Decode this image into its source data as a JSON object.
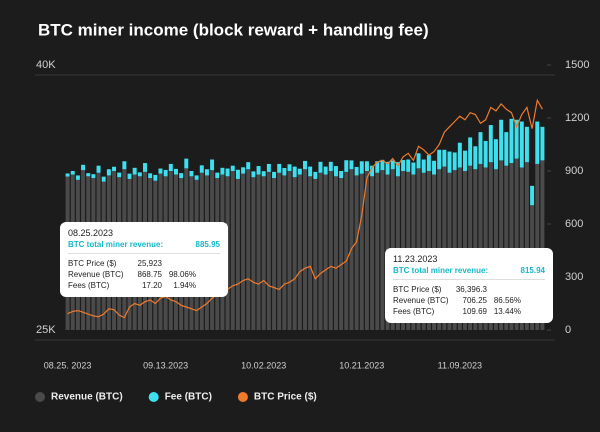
{
  "chart_data": {
    "type": "bar",
    "title": "BTC miner income (block reward + handling fee)",
    "categories": [
      "08.25. 2023",
      null,
      null,
      null,
      null,
      null,
      null,
      null,
      null,
      null,
      null,
      null,
      null,
      null,
      null,
      null,
      null,
      null,
      null,
      "09.13.2023",
      null,
      null,
      null,
      null,
      null,
      null,
      null,
      null,
      null,
      null,
      null,
      null,
      null,
      null,
      null,
      null,
      null,
      null,
      "10.02.2023",
      null,
      null,
      null,
      null,
      null,
      null,
      null,
      null,
      null,
      null,
      null,
      null,
      null,
      null,
      null,
      null,
      null,
      null,
      "10.21.2023",
      null,
      null,
      null,
      null,
      null,
      null,
      null,
      null,
      null,
      null,
      null,
      null,
      null,
      null,
      null,
      null,
      null,
      null,
      "11.09.2023",
      null,
      null,
      null,
      null,
      null,
      null,
      null,
      null,
      null,
      null,
      null,
      null,
      null,
      null,
      null,
      null
    ],
    "series": [
      {
        "name": "Revenue (BTC)",
        "color": "#4a4a4a",
        "type": "bar",
        "axis": "y2",
        "values": [
          868.75,
          880,
          850,
          905,
          870,
          860,
          890,
          840,
          875,
          900,
          865,
          910,
          855,
          880,
          870,
          895,
          860,
          845,
          885,
          870,
          900,
          880,
          860,
          915,
          870,
          850,
          890,
          875,
          905,
          860,
          880,
          870,
          900,
          855,
          885,
          910,
          865,
          880,
          870,
          895,
          860,
          890,
          875,
          900,
          865,
          880,
          910,
          870,
          855,
          890,
          880,
          900,
          870,
          860,
          895,
          910,
          875,
          885,
          900,
          870,
          890,
          905,
          880,
          910,
          870,
          900,
          895,
          880,
          915,
          890,
          900,
          880,
          910,
          925,
          890,
          905,
          920,
          900,
          930,
          910,
          940,
          920,
          950,
          910,
          960,
          930,
          945,
          970,
          920,
          950,
          706.25,
          940,
          960
        ]
      },
      {
        "name": "Fee (BTC)",
        "color": "#3ee0f0",
        "type": "bar",
        "axis": "y2",
        "values": [
          17.2,
          20,
          25,
          30,
          18,
          22,
          40,
          28,
          35,
          24,
          26,
          45,
          30,
          38,
          22,
          50,
          27,
          33,
          29,
          36,
          40,
          32,
          28,
          55,
          30,
          25,
          42,
          35,
          60,
          31,
          38,
          44,
          30,
          52,
          36,
          40,
          33,
          48,
          29,
          45,
          35,
          50,
          42,
          38,
          60,
          33,
          47,
          55,
          40,
          62,
          45,
          52,
          58,
          40,
          66,
          50,
          48,
          70,
          55,
          60,
          65,
          58,
          72,
          50,
          80,
          62,
          70,
          68,
          85,
          75,
          90,
          78,
          110,
          95,
          120,
          100,
          140,
          115,
          160,
          130,
          180,
          150,
          210,
          170,
          230,
          190,
          250,
          220,
          260,
          200,
          109.69,
          240,
          190
        ]
      },
      {
        "name": "BTC Price ($)",
        "color": "#f07a2c",
        "type": "line",
        "values": [
          25923,
          26050,
          26100,
          26000,
          25900,
          25800,
          25750,
          25900,
          26200,
          26150,
          25850,
          25700,
          26300,
          26500,
          26400,
          26600,
          26700,
          26500,
          26800,
          26900,
          26700,
          26600,
          26400,
          26300,
          26200,
          26100,
          26300,
          26500,
          26800,
          27000,
          27100,
          27300,
          27500,
          27600,
          27800,
          27900,
          27700,
          27600,
          27800,
          27500,
          27400,
          27300,
          27600,
          27700,
          27900,
          28300,
          28500,
          28600,
          27900,
          28200,
          28400,
          28600,
          28500,
          28700,
          28900,
          29600,
          30000,
          31500,
          33600,
          34200,
          34500,
          34600,
          34400,
          34700,
          34300,
          34800,
          35000,
          34600,
          35400,
          35200,
          34900,
          35100,
          35500,
          36200,
          36500,
          36800,
          37100,
          36900,
          37300,
          37200,
          36700,
          36900,
          37600,
          37400,
          37800,
          37500,
          37300,
          36500,
          37200,
          37600,
          36396.3,
          38000,
          37500
        ]
      }
    ],
    "ylim": [
      25000,
      40000
    ],
    "yticks": [
      {
        "value": 25000,
        "label": "25K"
      },
      {
        "value": 40000,
        "label": "40K"
      }
    ],
    "y2lim": [
      0,
      1500
    ],
    "y2ticks": [
      0,
      300,
      600,
      900,
      1200,
      1500
    ],
    "grid": true,
    "tooltips": [
      {
        "date": "08.25.2023",
        "title": "BTC total miner revenue:",
        "total": "885.95",
        "rows": [
          [
            "BTC Price ($)",
            "25,923"
          ],
          [
            "Revenue (BTC)",
            "868.75",
            "98.06%"
          ],
          [
            "Fees (BTC)",
            "17.20",
            "1.94%"
          ]
        ]
      },
      {
        "date": "11.23.2023",
        "title": "BTC total miner revenue:",
        "total": "815.94",
        "rows": [
          [
            "BTC Price ($)",
            "36,396.3"
          ],
          [
            "Revenue (BTC)",
            "706.25",
            "86.56%"
          ],
          [
            "Fees (BTC)",
            "109.69",
            "13.44%"
          ]
        ]
      }
    ]
  }
}
